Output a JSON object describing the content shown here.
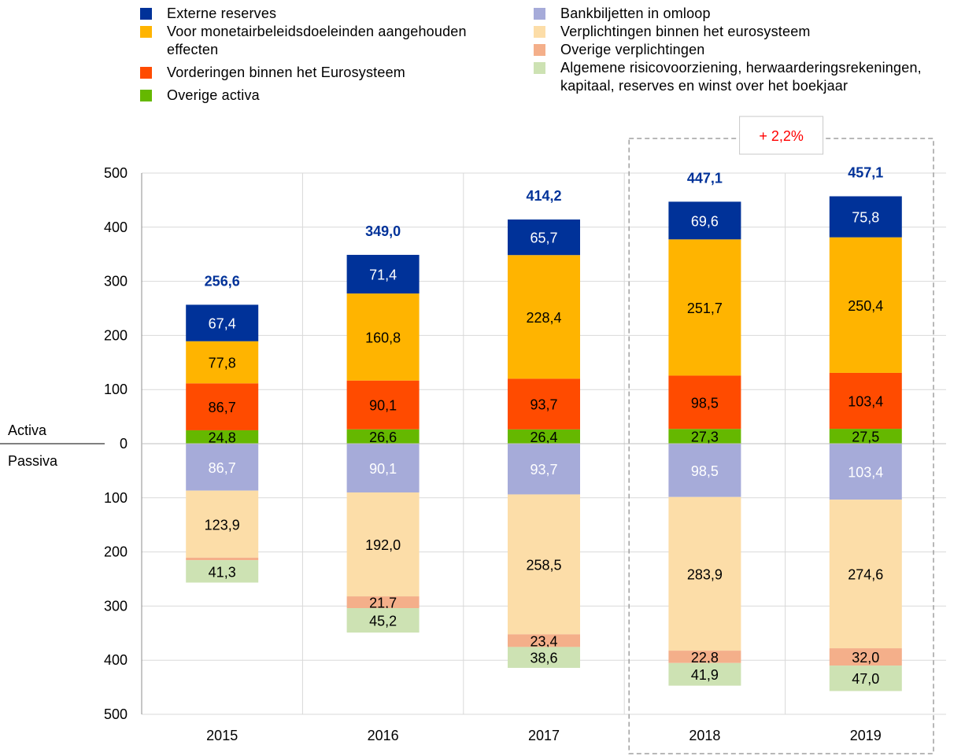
{
  "legend": {
    "left": [
      {
        "label": "Externe reserves",
        "color": "#003299"
      },
      {
        "label": "Voor monetairbeleidsdoeleinden aangehouden effecten",
        "color": "#FFB400"
      },
      {
        "label": "Vorderingen binnen het Eurosysteem",
        "color": "#FF4B00"
      },
      {
        "label": "Overige activa",
        "color": "#65B800"
      }
    ],
    "right": [
      {
        "label": "Bankbiljetten in omloop",
        "color": "#A6ABD9"
      },
      {
        "label": "Verplichtingen binnen het eurosysteem",
        "color": "#FCDDA8"
      },
      {
        "label": "Overige verplichtingen",
        "color": "#F4AF8A"
      },
      {
        "label": "Algemene risicovoorziening, herwaarderingsrekeningen, kapitaal, reserves en winst over het boekjaar",
        "color": "#CDE2B3"
      }
    ]
  },
  "annotations": {
    "activa": "Activa",
    "passiva": "Passiva",
    "growth": "+ 2,2%"
  },
  "chart_data": {
    "type": "bar",
    "stacked": true,
    "categories": [
      "2015",
      "2016",
      "2017",
      "2018",
      "2019"
    ],
    "y_ticks": [
      "500",
      "400",
      "300",
      "200",
      "100",
      "0",
      "100",
      "200",
      "300",
      "400",
      "500"
    ],
    "ylim": [
      -500,
      500
    ],
    "grid": true,
    "legend_position": "top",
    "totals": [
      "256,6",
      "349,0",
      "414,2",
      "447,1",
      "457,1"
    ],
    "totals_color": "#003299",
    "growth_color": "#FF0000",
    "assets": [
      {
        "name": "Overige activa",
        "color": "#65B800",
        "values": [
          24.8,
          26.6,
          26.4,
          27.3,
          27.5
        ],
        "labels": [
          "24,8",
          "26,6",
          "26,4",
          "27,3",
          "27,5"
        ],
        "label_color": "#000000"
      },
      {
        "name": "Vorderingen binnen het Eurosysteem",
        "color": "#FF4B00",
        "values": [
          86.7,
          90.1,
          93.7,
          98.5,
          103.4
        ],
        "labels": [
          "86,7",
          "90,1",
          "93,7",
          "98,5",
          "103,4"
        ],
        "label_color": "#000000"
      },
      {
        "name": "Voor monetairbeleidsdoeleinden aangehouden effecten",
        "color": "#FFB400",
        "values": [
          77.8,
          160.8,
          228.4,
          251.7,
          250.4
        ],
        "labels": [
          "77,8",
          "160,8",
          "228,4",
          "251,7",
          "250,4"
        ],
        "label_color": "#000000"
      },
      {
        "name": "Externe reserves",
        "color": "#003299",
        "values": [
          67.4,
          71.4,
          65.7,
          69.6,
          75.8
        ],
        "labels": [
          "67,4",
          "71,4",
          "65,7",
          "69,6",
          "75,8"
        ],
        "label_color": "#FFFFFF"
      }
    ],
    "liabilities": [
      {
        "name": "Bankbiljetten in omloop",
        "color": "#A6ABD9",
        "values": [
          86.7,
          90.1,
          93.7,
          98.5,
          103.4
        ],
        "labels": [
          "86,7",
          "90,1",
          "93,7",
          "98,5",
          "103,4"
        ],
        "label_color": "#FFFFFF"
      },
      {
        "name": "Verplichtingen binnen het eurosysteem",
        "color": "#FCDDA8",
        "values": [
          123.9,
          192.0,
          258.5,
          283.9,
          274.6
        ],
        "labels": [
          "123,9",
          "192,0",
          "258,5",
          "283,9",
          "274,6"
        ],
        "label_color": "#000000"
      },
      {
        "name": "Overige verplichtingen",
        "color": "#F4AF8A",
        "values": [
          4.7,
          21.7,
          23.4,
          22.8,
          32.0
        ],
        "labels": [
          "",
          "21,7",
          "23,4",
          "22,8",
          "32,0"
        ],
        "label_color": "#000000"
      },
      {
        "name": "Algemene risicovoorziening, herwaarderingsrekeningen, kapitaal, reserves en winst over het boekjaar",
        "color": "#CDE2B3",
        "values": [
          41.3,
          45.2,
          38.6,
          41.9,
          47.0
        ],
        "labels": [
          "41,3",
          "45,2",
          "38,6",
          "41,9",
          "47,0"
        ],
        "label_color": "#000000"
      }
    ]
  }
}
